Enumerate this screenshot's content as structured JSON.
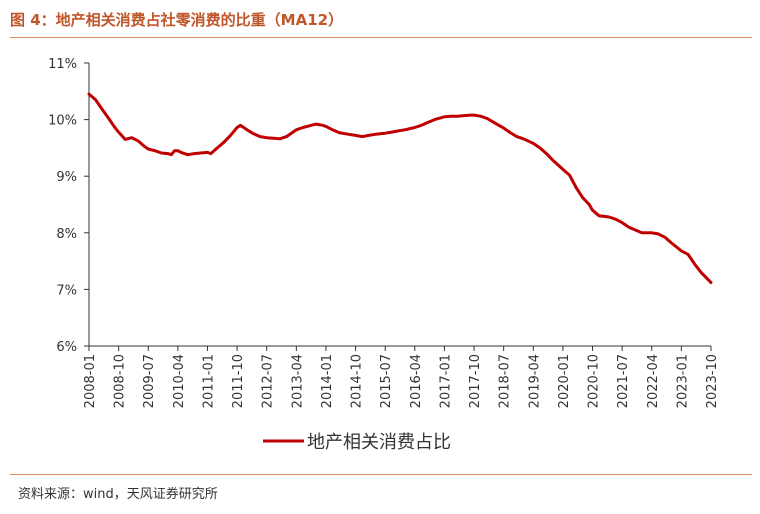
{
  "header": {
    "title": "图 4：地产相关消费占社零消费的比重（MA12）"
  },
  "footer": {
    "source": "资料来源：wind，天风证券研究所"
  },
  "colors": {
    "line": "#c00000",
    "rule": "#d98b60",
    "title": "#c0572b"
  },
  "chart_data": {
    "type": "line",
    "title": "图 4：地产相关消费占社零消费的比重（MA12）",
    "xlabel": "",
    "ylabel": "",
    "ylim": [
      6,
      11
    ],
    "y_ticks": [
      "6%",
      "7%",
      "8%",
      "9%",
      "10%",
      "11%"
    ],
    "x_ticks": [
      "2008-01",
      "2008-10",
      "2009-07",
      "2010-04",
      "2011-01",
      "2011-10",
      "2012-07",
      "2013-04",
      "2014-01",
      "2014-10",
      "2015-07",
      "2016-04",
      "2017-01",
      "2017-10",
      "2018-07",
      "2019-04",
      "2020-01",
      "2020-10",
      "2021-07",
      "2022-04",
      "2023-01",
      "2023-10"
    ],
    "grid": false,
    "legend_position": "bottom",
    "series": [
      {
        "name": "地产相关消费占比",
        "points": [
          [
            "2008-01",
            10.45
          ],
          [
            "2008-03",
            10.35
          ],
          [
            "2008-05",
            10.18
          ],
          [
            "2008-07",
            10.02
          ],
          [
            "2008-09",
            9.85
          ],
          [
            "2008-10",
            9.78
          ],
          [
            "2008-12",
            9.65
          ],
          [
            "2009-02",
            9.68
          ],
          [
            "2009-04",
            9.62
          ],
          [
            "2009-06",
            9.52
          ],
          [
            "2009-07",
            9.48
          ],
          [
            "2009-09",
            9.45
          ],
          [
            "2009-11",
            9.41
          ],
          [
            "2010-01",
            9.4
          ],
          [
            "2010-02",
            9.38
          ],
          [
            "2010-03",
            9.45
          ],
          [
            "2010-04",
            9.45
          ],
          [
            "2010-05",
            9.42
          ],
          [
            "2010-07",
            9.38
          ],
          [
            "2010-09",
            9.4
          ],
          [
            "2010-11",
            9.41
          ],
          [
            "2011-01",
            9.42
          ],
          [
            "2011-02",
            9.4
          ],
          [
            "2011-04",
            9.5
          ],
          [
            "2011-06",
            9.6
          ],
          [
            "2011-08",
            9.72
          ],
          [
            "2011-10",
            9.86
          ],
          [
            "2011-11",
            9.9
          ],
          [
            "2012-01",
            9.82
          ],
          [
            "2012-03",
            9.75
          ],
          [
            "2012-05",
            9.7
          ],
          [
            "2012-07",
            9.68
          ],
          [
            "2012-09",
            9.67
          ],
          [
            "2012-11",
            9.66
          ],
          [
            "2013-01",
            9.7
          ],
          [
            "2013-03",
            9.78
          ],
          [
            "2013-04",
            9.82
          ],
          [
            "2013-06",
            9.86
          ],
          [
            "2013-08",
            9.89
          ],
          [
            "2013-10",
            9.92
          ],
          [
            "2013-12",
            9.9
          ],
          [
            "2014-01",
            9.88
          ],
          [
            "2014-03",
            9.82
          ],
          [
            "2014-05",
            9.77
          ],
          [
            "2014-07",
            9.75
          ],
          [
            "2014-09",
            9.73
          ],
          [
            "2014-10",
            9.72
          ],
          [
            "2014-12",
            9.7
          ],
          [
            "2015-02",
            9.72
          ],
          [
            "2015-04",
            9.74
          ],
          [
            "2015-07",
            9.76
          ],
          [
            "2015-09",
            9.78
          ],
          [
            "2015-11",
            9.8
          ],
          [
            "2016-01",
            9.82
          ],
          [
            "2016-04",
            9.86
          ],
          [
            "2016-06",
            9.9
          ],
          [
            "2016-08",
            9.95
          ],
          [
            "2016-10",
            10.0
          ],
          [
            "2017-01",
            10.05
          ],
          [
            "2017-03",
            10.06
          ],
          [
            "2017-05",
            10.06
          ],
          [
            "2017-07",
            10.07
          ],
          [
            "2017-09",
            10.08
          ],
          [
            "2017-10",
            10.08
          ],
          [
            "2017-12",
            10.06
          ],
          [
            "2018-02",
            10.02
          ],
          [
            "2018-04",
            9.95
          ],
          [
            "2018-07",
            9.85
          ],
          [
            "2018-09",
            9.77
          ],
          [
            "2018-11",
            9.7
          ],
          [
            "2019-01",
            9.66
          ],
          [
            "2019-04",
            9.58
          ],
          [
            "2019-06",
            9.5
          ],
          [
            "2019-08",
            9.4
          ],
          [
            "2019-10",
            9.28
          ],
          [
            "2020-01",
            9.12
          ],
          [
            "2020-03",
            9.02
          ],
          [
            "2020-05",
            8.8
          ],
          [
            "2020-07",
            8.62
          ],
          [
            "2020-09",
            8.5
          ],
          [
            "2020-10",
            8.4
          ],
          [
            "2020-12",
            8.3
          ],
          [
            "2021-03",
            8.28
          ],
          [
            "2021-05",
            8.24
          ],
          [
            "2021-07",
            8.18
          ],
          [
            "2021-09",
            8.1
          ],
          [
            "2021-11",
            8.05
          ],
          [
            "2022-01",
            8.0
          ],
          [
            "2022-04",
            8.0
          ],
          [
            "2022-06",
            7.98
          ],
          [
            "2022-08",
            7.92
          ],
          [
            "2022-10",
            7.82
          ],
          [
            "2023-01",
            7.68
          ],
          [
            "2023-03",
            7.62
          ],
          [
            "2023-05",
            7.45
          ],
          [
            "2023-07",
            7.3
          ],
          [
            "2023-10",
            7.12
          ]
        ]
      }
    ]
  }
}
